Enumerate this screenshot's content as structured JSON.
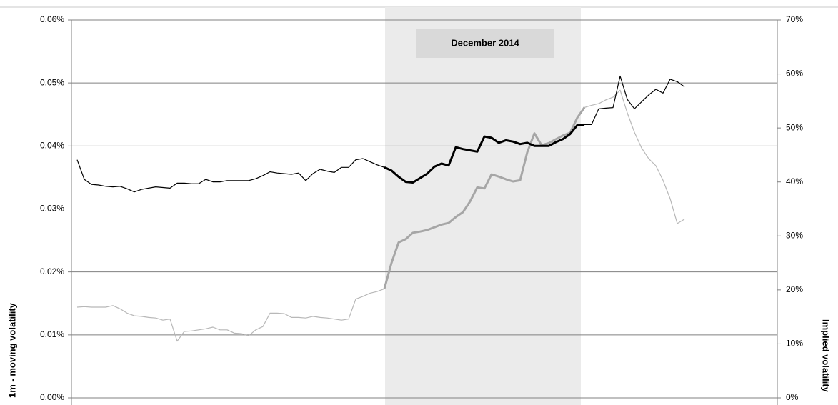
{
  "chart_data": {
    "type": "line",
    "annotation": "December 2014",
    "y_label": "1m - moving volatility",
    "y2_label": "Implied volatility",
    "categories": [
      null,
      null,
      null,
      null,
      null,
      null,
      null,
      null,
      null,
      null,
      null,
      null,
      null,
      null,
      null,
      null,
      null,
      null,
      null,
      null,
      null,
      null,
      null,
      null,
      null,
      null,
      null,
      null,
      null,
      null,
      null,
      null,
      null,
      null,
      null,
      null,
      null,
      null,
      null,
      null,
      null,
      null,
      null,
      null,
      null,
      null,
      null,
      null,
      null,
      null,
      null,
      null,
      null,
      null,
      null,
      null,
      null,
      null,
      null,
      null,
      null,
      null,
      null,
      null,
      null,
      null,
      null,
      null,
      null,
      null,
      null,
      null,
      null,
      null,
      null,
      null,
      null,
      null,
      null,
      null,
      null,
      null,
      null,
      null,
      null,
      null
    ],
    "ylim": [
      0,
      0.06
    ],
    "yticks": [
      {
        "value": 0,
        "label": "0.00%"
      },
      {
        "value": 0.01,
        "label": "0.01%"
      },
      {
        "value": 0.02,
        "label": "0.02%"
      },
      {
        "value": 0.03,
        "label": "0.03%"
      },
      {
        "value": 0.04,
        "label": "0.04%"
      },
      {
        "value": 0.05,
        "label": "0.05%"
      },
      {
        "value": 0.06,
        "label": "0.06%"
      }
    ],
    "y2lim": [
      0,
      70
    ],
    "y2ticks": [
      {
        "value": 0,
        "label": "0%"
      },
      {
        "value": 10,
        "label": "10%"
      },
      {
        "value": 20,
        "label": "20%"
      },
      {
        "value": 30,
        "label": "30%"
      },
      {
        "value": 40,
        "label": "40%"
      },
      {
        "value": 50,
        "label": "50%"
      },
      {
        "value": 60,
        "label": "60%"
      },
      {
        "value": 70,
        "label": "70%"
      }
    ],
    "grid": true,
    "series": [
      {
        "color": "#000000",
        "values": [
          0.0378,
          0.0347,
          0.0339,
          0.0338,
          0.0336,
          0.0335,
          0.0336,
          0.0332,
          0.0327,
          0.0331,
          0.0333,
          0.0335,
          0.0334,
          0.0333,
          0.0341,
          0.0341,
          0.034,
          0.034,
          0.0347,
          0.0343,
          0.0343,
          0.0345,
          0.0345,
          0.0345,
          0.0345,
          0.0348,
          0.0353,
          0.0359,
          0.0357,
          0.0356,
          0.0355,
          0.0357,
          0.0345,
          0.0356,
          0.0363,
          0.036,
          0.0358,
          0.0366,
          0.0366,
          0.0378,
          0.038,
          0.0375,
          0.037,
          0.0366,
          0.0361,
          0.0351,
          0.0343,
          0.0342,
          0.0349,
          0.0356,
          0.0367,
          0.0372,
          0.0369,
          0.0398,
          0.0395,
          0.0393,
          0.0391,
          0.0415,
          0.0413,
          0.0405,
          0.0409,
          0.0407,
          0.0403,
          0.0405,
          0.04,
          0.04,
          0.04,
          0.0406,
          0.0411,
          0.0419,
          0.0433,
          0.0434,
          0.0434,
          0.0459,
          0.046,
          0.0461,
          0.0511,
          0.0474,
          0.0459,
          0.047,
          0.0481,
          0.049,
          0.0484,
          0.0506,
          0.0502,
          0.0494
        ]
      },
      {
        "color": "#b8b8b8",
        "axis": "y2",
        "values": [
          16.8,
          16.9,
          16.8,
          16.8,
          16.8,
          17.1,
          16.5,
          15.7,
          15.2,
          15.1,
          14.9,
          14.8,
          14.4,
          14.6,
          10.5,
          12.3,
          12.4,
          12.6,
          12.8,
          13.1,
          12.6,
          12.6,
          12.0,
          11.9,
          11.5,
          12.6,
          13.2,
          15.7,
          15.7,
          15.6,
          14.9,
          14.9,
          14.8,
          15.1,
          14.9,
          14.8,
          14.6,
          14.4,
          14.6,
          18.3,
          18.8,
          19.4,
          19.7,
          20.2,
          25.0,
          28.8,
          29.4,
          30.6,
          30.8,
          31.1,
          31.6,
          32.1,
          32.4,
          33.5,
          34.4,
          36.4,
          39.0,
          38.8,
          41.4,
          41.0,
          40.5,
          40.1,
          40.3,
          45.5,
          49.0,
          46.8,
          47.2,
          47.9,
          48.6,
          49.1,
          51.9,
          53.8,
          54.2,
          54.5,
          55.2,
          55.7,
          57.0,
          52.8,
          49.2,
          46.3,
          44.3,
          43.0,
          40.3,
          36.9,
          32.3,
          33.1
        ]
      }
    ]
  }
}
